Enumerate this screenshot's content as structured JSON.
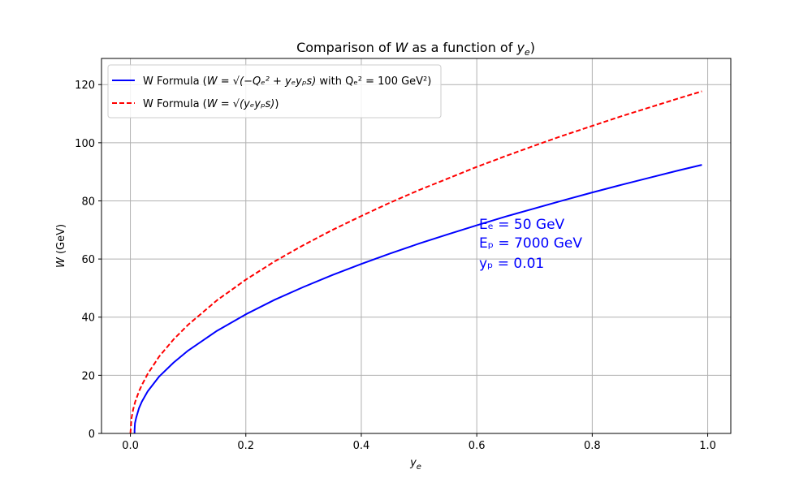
{
  "chart_data": {
    "type": "line",
    "title": "Comparison of W as a function of y_e)",
    "xlabel": "y_e",
    "ylabel": "W (GeV)",
    "xlim": [
      -0.05,
      1.04
    ],
    "ylim": [
      0,
      129
    ],
    "x_ticks": [
      0.0,
      0.2,
      0.4,
      0.6,
      0.8,
      1.0
    ],
    "x_tick_labels": [
      "0.0",
      "0.2",
      "0.4",
      "0.6",
      "0.8",
      "1.0"
    ],
    "y_ticks": [
      0,
      20,
      40,
      60,
      80,
      100,
      120
    ],
    "y_tick_labels": [
      "0",
      "20",
      "40",
      "60",
      "80",
      "100",
      "120"
    ],
    "grid": true,
    "legend_position": "top-left",
    "x": [
      0.0,
      0.002,
      0.005,
      0.0072,
      0.008,
      0.01,
      0.015,
      0.02,
      0.03,
      0.05,
      0.075,
      0.1,
      0.15,
      0.2,
      0.25,
      0.3,
      0.35,
      0.4,
      0.45,
      0.5,
      0.55,
      0.6,
      0.65,
      0.7,
      0.75,
      0.8,
      0.85,
      0.9,
      0.95,
      0.99
    ],
    "series": [
      {
        "name": "W Formula (W = √(−Q_e² + y_e y_p s) with Q_e² = 100 GeV²)",
        "color": "#0000ff",
        "style": "solid",
        "values": [
          null,
          null,
          null,
          1.0,
          3.5,
          5.4,
          8.7,
          11.0,
          14.5,
          19.6,
          24.4,
          28.5,
          35.3,
          41.0,
          46.0,
          50.4,
          54.5,
          58.3,
          61.9,
          65.3,
          68.5,
          71.6,
          74.6,
          77.4,
          80.2,
          82.9,
          85.5,
          88.0,
          90.5,
          92.4
        ]
      },
      {
        "name": "W Formula (W = √(y_e y_p s))",
        "color": "#ff0000",
        "style": "dashed",
        "values": [
          0.0,
          5.3,
          8.4,
          10.0,
          10.6,
          11.8,
          14.5,
          16.7,
          20.5,
          26.5,
          32.4,
          37.4,
          45.8,
          52.9,
          59.2,
          64.8,
          70.0,
          74.8,
          79.4,
          83.7,
          87.7,
          91.7,
          95.4,
          99.0,
          102.5,
          105.8,
          109.1,
          112.2,
          115.3,
          117.7
        ]
      }
    ]
  },
  "legend": {
    "item1_prefix": "W Formula (",
    "item1_formula": "W = √(−Qₑ² + yₑyₚs)",
    "item1_suffix": " with Qₑ² = 100 GeV²)",
    "item2_prefix": "W Formula (",
    "item2_formula": "W = √(yₑyₚs)",
    "item2_suffix": ")"
  },
  "annotation": {
    "color": "#0000ff",
    "line1": "Eₑ = 50 GeV",
    "line2": "Eₚ = 7000 GeV",
    "line3": "yₚ = 0.01"
  },
  "labels": {
    "title_prefix": "Comparison of ",
    "title_w": "W",
    "title_mid": " as a function of ",
    "title_y": "y",
    "title_sub": "e",
    "title_suffix": ")",
    "xlabel_main": "y",
    "xlabel_sub": "e",
    "ylabel_w": "W",
    "ylabel_rest": " (GeV)"
  }
}
